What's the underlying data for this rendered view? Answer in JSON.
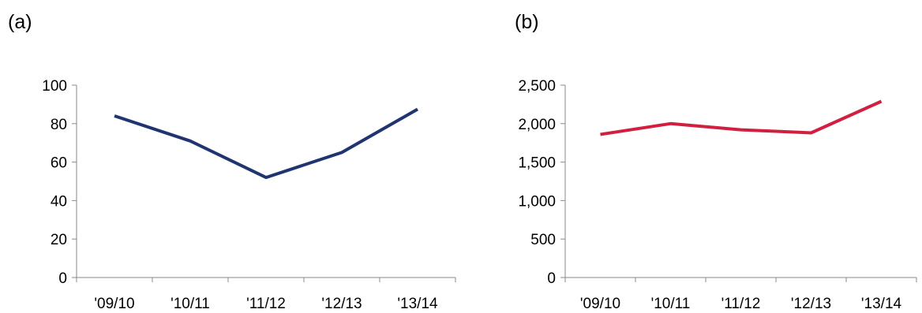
{
  "panels": {
    "a": {
      "label": "(a)"
    },
    "b": {
      "label": "(b)"
    }
  },
  "chart_data": [
    {
      "type": "line",
      "categories": [
        "'09/10",
        "'10/11",
        "'11/12",
        "'12/13",
        "'13/14"
      ],
      "series": [
        {
          "values": [
            84,
            71,
            52,
            65,
            87.5
          ],
          "color": "#1f3470"
        }
      ],
      "ylim": [
        0,
        100
      ],
      "yticks": [
        0,
        20,
        40,
        60,
        80,
        100
      ],
      "ytick_labels": [
        "0",
        "20",
        "40",
        "60",
        "80",
        "100"
      ],
      "grid": false,
      "legend": "none"
    },
    {
      "type": "line",
      "categories": [
        "'09/10",
        "'10/11",
        "'11/12",
        "'12/13",
        "'13/14"
      ],
      "series": [
        {
          "values": [
            1860,
            2000,
            1920,
            1880,
            2290
          ],
          "color": "#d11f3f"
        }
      ],
      "ylim": [
        0,
        2500
      ],
      "yticks": [
        0,
        500,
        1000,
        1500,
        2000,
        2500
      ],
      "ytick_labels": [
        "0",
        "500",
        "1,000",
        "1,500",
        "2,000",
        "2,500"
      ],
      "grid": false,
      "legend": "none"
    }
  ]
}
